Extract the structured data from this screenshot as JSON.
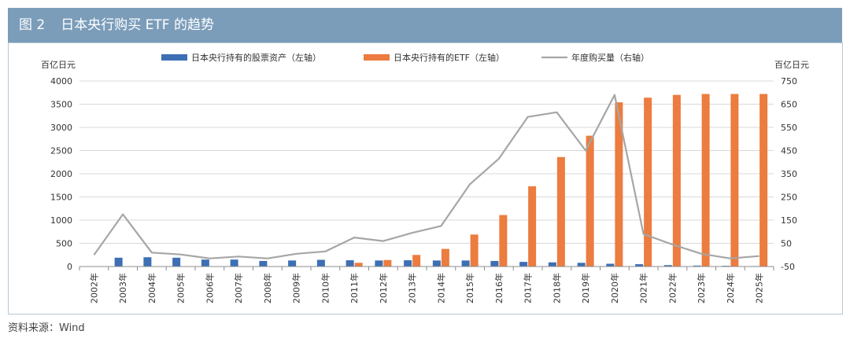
{
  "figure": {
    "number": "图 2",
    "title": "日本央行购买 ETF 的趋势"
  },
  "source": "资料来源：Wind",
  "chart_data": {
    "type": "bar",
    "left_axis_unit": "百亿日元",
    "right_axis_unit": "百亿日元",
    "categories": [
      "2002年",
      "2003年",
      "2004年",
      "2005年",
      "2006年",
      "2007年",
      "2008年",
      "2009年",
      "2010年",
      "2011年",
      "2012年",
      "2013年",
      "2014年",
      "2015年",
      "2016年",
      "2017年",
      "2018年",
      "2019年",
      "2020年",
      "2021年",
      "2022年",
      "2023年",
      "2024年",
      "2025年"
    ],
    "ylim_left": [
      0,
      4000
    ],
    "yticks_left": [
      0,
      500,
      1000,
      1500,
      2000,
      2500,
      3000,
      3500,
      4000
    ],
    "ylim_right": [
      -50,
      750
    ],
    "yticks_right": [
      -50,
      50,
      150,
      250,
      350,
      450,
      550,
      650,
      750
    ],
    "legend_position": "top",
    "series": [
      {
        "name": "日本央行持有的股票资产（左轴）",
        "type": "bar",
        "axis": "left",
        "color": "#3d6fb5",
        "values": [
          0,
          190,
          200,
          190,
          150,
          150,
          120,
          130,
          145,
          135,
          130,
          135,
          130,
          130,
          120,
          100,
          90,
          80,
          60,
          50,
          30,
          20,
          15,
          10
        ]
      },
      {
        "name": "日本央行持有的ETF（左轴）",
        "type": "bar",
        "axis": "left",
        "color": "#ec7c3f",
        "values": [
          0,
          0,
          0,
          0,
          0,
          0,
          0,
          0,
          0,
          80,
          140,
          250,
          380,
          690,
          1110,
          1730,
          2360,
          2820,
          3540,
          3640,
          3700,
          3720,
          3720,
          3720
        ]
      },
      {
        "name": "年度购买量（右轴）",
        "type": "line",
        "axis": "right",
        "color": "#a6a6a6",
        "values": [
          0,
          175,
          10,
          2,
          -15,
          -7,
          -15,
          5,
          15,
          75,
          60,
          95,
          125,
          305,
          415,
          595,
          615,
          450,
          690,
          90,
          45,
          5,
          -15,
          -5
        ]
      }
    ]
  }
}
